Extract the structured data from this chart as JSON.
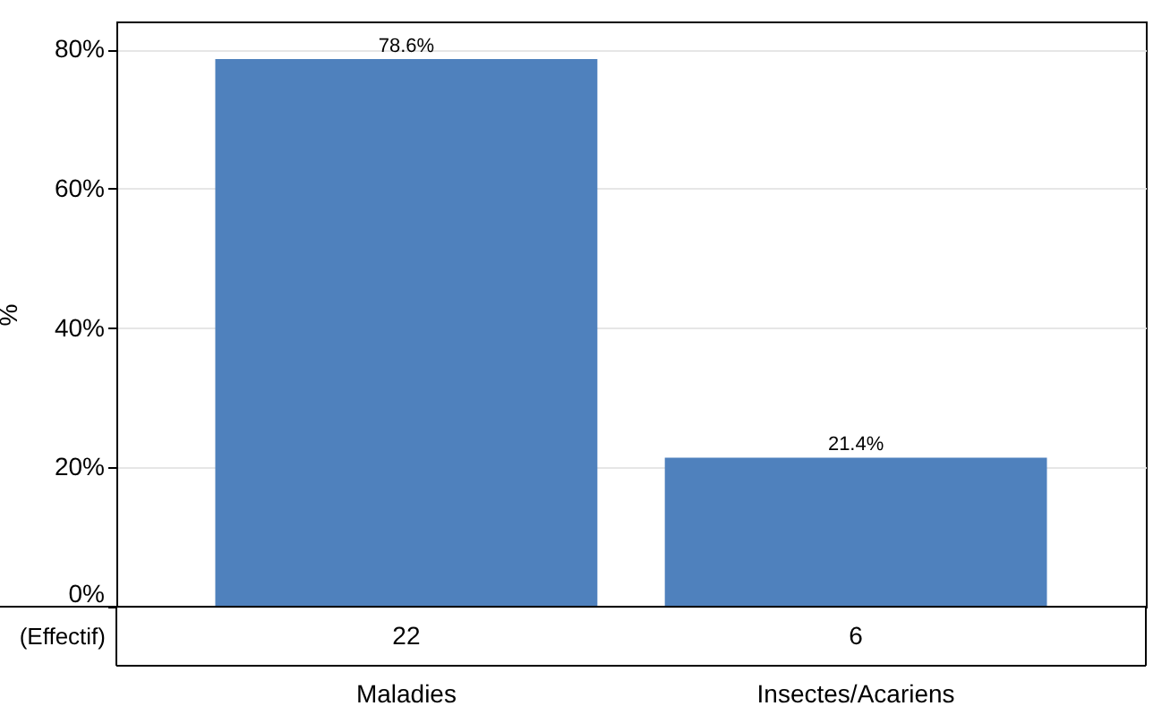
{
  "chart_data": {
    "type": "bar",
    "ylabel": "%",
    "categories": [
      "Maladies",
      "Insectes/Acariens"
    ],
    "values": [
      78.6,
      21.4
    ],
    "value_labels": [
      "78.6%",
      "21.4%"
    ],
    "color": "#4f81bd",
    "ylim": [
      0,
      84
    ],
    "yticks": [
      {
        "value": 0,
        "label": "0%"
      },
      {
        "value": 20,
        "label": "20%"
      },
      {
        "value": 40,
        "label": "40%"
      },
      {
        "value": 60,
        "label": "60%"
      },
      {
        "value": 80,
        "label": "80%"
      }
    ],
    "grid": "y",
    "annotations": [
      "(Effectif)",
      "22",
      "6"
    ]
  }
}
